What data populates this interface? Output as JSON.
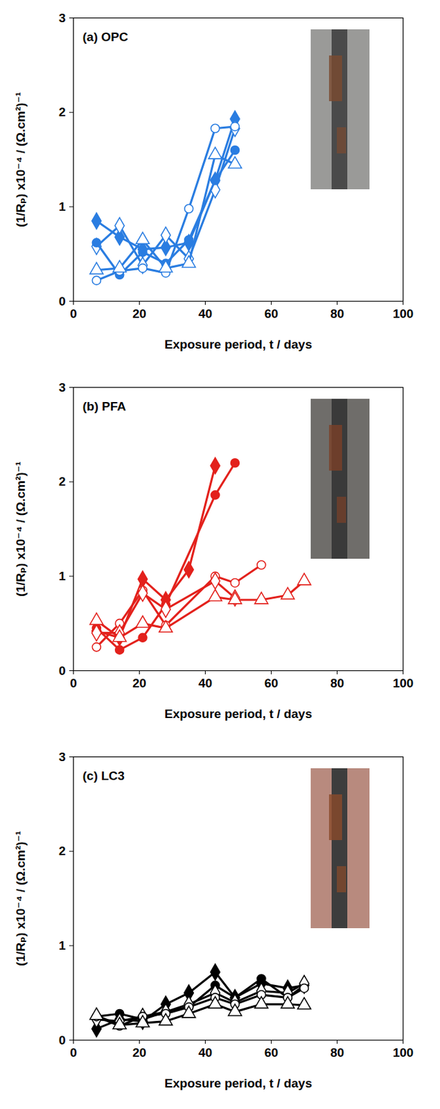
{
  "chart_data": [
    {
      "type": "line",
      "title": "(a) OPC",
      "x_label": "Exposure period, t / days",
      "y_label": "(1/Rₚ) x10⁻⁴ / (Ω.cm²)⁻¹",
      "xlim": [
        0,
        100
      ],
      "xticks": [
        0,
        20,
        40,
        60,
        80,
        100
      ],
      "ylim": [
        0,
        3
      ],
      "yticks": [
        0,
        1,
        2,
        3
      ],
      "grid": false,
      "series": [
        {
          "color": "#2a7de1",
          "marker": "filled_diamond",
          "x": [
            7,
            14,
            21,
            28,
            35,
            43,
            49
          ],
          "values": [
            0.85,
            0.68,
            0.55,
            0.57,
            0.62,
            1.28,
            1.93
          ]
        },
        {
          "color": "#2a7de1",
          "marker": "open_diamond",
          "x": [
            7,
            14,
            21,
            28,
            35,
            43,
            49
          ],
          "values": [
            0.58,
            0.8,
            0.38,
            0.7,
            0.45,
            1.18,
            1.83
          ]
        },
        {
          "color": "#2a7de1",
          "marker": "filled_circle",
          "x": [
            7,
            14,
            21,
            28,
            35,
            43,
            49
          ],
          "values": [
            0.62,
            0.28,
            0.52,
            0.4,
            0.65,
            1.28,
            1.6
          ]
        },
        {
          "color": "#2a7de1",
          "marker": "open_circle",
          "x": [
            7,
            14,
            21,
            28,
            35,
            43,
            49
          ],
          "values": [
            0.22,
            0.32,
            0.35,
            0.3,
            0.98,
            1.83,
            1.85
          ]
        },
        {
          "color": "#2a7de1",
          "marker": "open_triangle",
          "x": [
            7,
            14,
            21,
            28,
            35,
            43,
            49
          ],
          "values": [
            0.33,
            0.35,
            0.65,
            0.35,
            0.4,
            1.55,
            1.45
          ]
        }
      ]
    },
    {
      "type": "line",
      "title": "(b) PFA",
      "x_label": "Exposure period, t / days",
      "y_label": "(1/Rₚ) x10⁻⁴ / (Ω.cm²)⁻¹",
      "xlim": [
        0,
        100
      ],
      "xticks": [
        0,
        20,
        40,
        60,
        80,
        100
      ],
      "ylim": [
        0,
        3
      ],
      "yticks": [
        0,
        1,
        2,
        3
      ],
      "grid": false,
      "series": [
        {
          "color": "#e3211c",
          "marker": "filled_diamond",
          "x": [
            7,
            14,
            21,
            28,
            35,
            43
          ],
          "values": [
            0.42,
            0.35,
            0.97,
            0.75,
            1.07,
            2.17
          ]
        },
        {
          "color": "#e3211c",
          "marker": "filled_circle",
          "x": [
            7,
            14,
            21,
            28,
            43,
            49
          ],
          "values": [
            0.45,
            0.22,
            0.35,
            0.7,
            1.86,
            2.2
          ]
        },
        {
          "color": "#e3211c",
          "marker": "open_circle",
          "x": [
            7,
            14,
            21,
            28,
            43,
            49,
            57
          ],
          "values": [
            0.25,
            0.5,
            0.85,
            0.48,
            1.0,
            0.93,
            1.12
          ]
        },
        {
          "color": "#e3211c",
          "marker": "open_diamond",
          "x": [
            7,
            14,
            21,
            28,
            43,
            49
          ],
          "values": [
            0.4,
            0.4,
            0.82,
            0.65,
            0.95,
            0.77
          ]
        },
        {
          "color": "#e3211c",
          "marker": "open_triangle",
          "x": [
            7,
            14,
            21,
            28,
            43,
            49,
            57,
            65,
            70
          ],
          "values": [
            0.53,
            0.35,
            0.5,
            0.45,
            0.78,
            0.75,
            0.75,
            0.8,
            0.95
          ]
        }
      ]
    },
    {
      "type": "line",
      "title": "(c) LC3",
      "x_label": "Exposure period, t / days",
      "y_label": "(1/Rₚ) x10⁻⁴ / (Ω.cm²)⁻¹",
      "xlim": [
        0,
        100
      ],
      "xticks": [
        0,
        20,
        40,
        60,
        80,
        100
      ],
      "ylim": [
        0,
        3
      ],
      "yticks": [
        0,
        1,
        2,
        3
      ],
      "grid": false,
      "series": [
        {
          "color": "#000000",
          "marker": "filled_diamond",
          "x": [
            7,
            14,
            21,
            28,
            35,
            43,
            49,
            57,
            65,
            70
          ],
          "values": [
            0.12,
            0.22,
            0.2,
            0.38,
            0.5,
            0.72,
            0.45,
            0.6,
            0.55,
            0.58
          ]
        },
        {
          "color": "#000000",
          "marker": "filled_circle",
          "x": [
            7,
            14,
            21,
            28,
            35,
            43,
            49,
            57,
            65,
            70
          ],
          "values": [
            0.25,
            0.28,
            0.22,
            0.3,
            0.35,
            0.58,
            0.45,
            0.65,
            0.45,
            0.58
          ]
        },
        {
          "color": "#000000",
          "marker": "open_diamond",
          "x": [
            7,
            14,
            21,
            28,
            35,
            43,
            49,
            57,
            65,
            70
          ],
          "values": [
            0.22,
            0.2,
            0.25,
            0.3,
            0.38,
            0.5,
            0.4,
            0.52,
            0.5,
            0.6
          ]
        },
        {
          "color": "#000000",
          "marker": "open_circle",
          "x": [
            7,
            14,
            21,
            28,
            35,
            43,
            49,
            57,
            65,
            70
          ],
          "values": [
            0.25,
            0.15,
            0.25,
            0.28,
            0.35,
            0.45,
            0.38,
            0.48,
            0.45,
            0.55
          ]
        },
        {
          "color": "#000000",
          "marker": "open_triangle",
          "x": [
            7,
            14,
            21,
            28,
            35,
            43,
            49,
            57,
            65,
            70
          ],
          "values": [
            0.26,
            0.16,
            0.18,
            0.2,
            0.28,
            0.38,
            0.3,
            0.38,
            0.38,
            0.37
          ]
        }
      ]
    }
  ]
}
